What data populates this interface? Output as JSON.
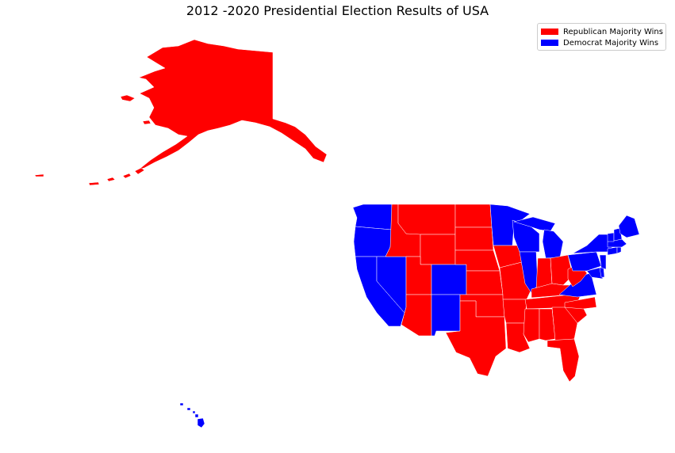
{
  "title": "2012 -2020 Presidential Election Results of USA",
  "legend": [
    {
      "label": "Republican Majority Wins",
      "color": "#ff0000"
    },
    {
      "label": "Democrat Majority Wins",
      "color": "#0000ff"
    }
  ],
  "colors": {
    "republican": "#ff0000",
    "democrat": "#0000ff",
    "border": "#ffffff"
  },
  "regions": {
    "alaska": "republican",
    "hawaii": "democrat",
    "washington": "democrat",
    "oregon": "democrat",
    "california": "democrat",
    "nevada": "democrat",
    "idaho": "republican",
    "montana": "republican",
    "wyoming": "republican",
    "utah": "republican",
    "arizona": "republican",
    "colorado": "democrat",
    "new-mexico": "democrat",
    "north-dakota": "republican",
    "south-dakota": "republican",
    "nebraska": "republican",
    "kansas": "republican",
    "oklahoma": "republican",
    "texas": "republican",
    "minnesota": "democrat",
    "iowa": "republican",
    "missouri": "republican",
    "arkansas": "republican",
    "louisiana": "republican",
    "wisconsin": "democrat",
    "illinois": "democrat",
    "michigan": "democrat",
    "indiana": "republican",
    "ohio": "republican",
    "kentucky": "republican",
    "tennessee": "republican",
    "mississippi": "republican",
    "alabama": "republican",
    "georgia": "republican",
    "florida": "republican",
    "south-carolina": "republican",
    "north-carolina": "republican",
    "virginia": "democrat",
    "west-virginia": "republican",
    "pennsylvania": "democrat",
    "new-york": "democrat",
    "maryland": "democrat",
    "delaware": "democrat",
    "new-jersey": "democrat",
    "connecticut": "democrat",
    "rhode-island": "democrat",
    "massachusetts": "democrat",
    "vermont": "democrat",
    "new-hampshire": "democrat",
    "maine": "democrat"
  }
}
